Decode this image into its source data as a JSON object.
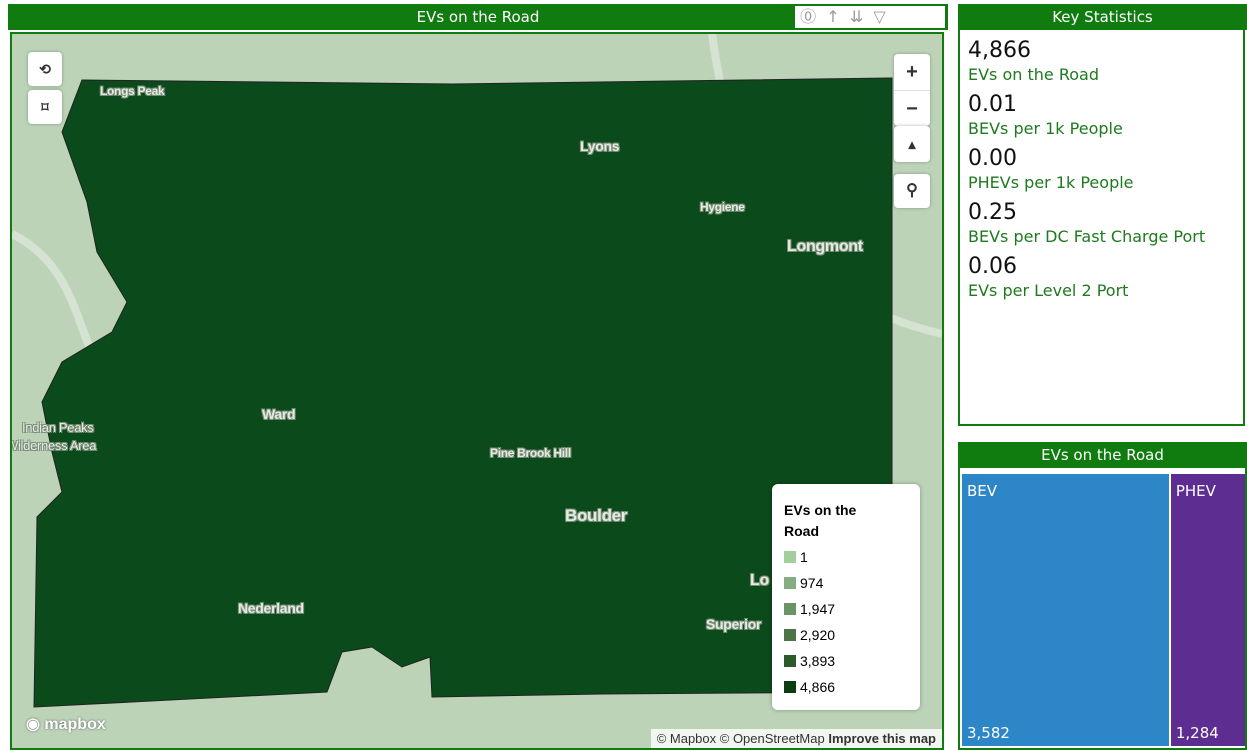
{
  "map_panel": {
    "title": "EVs on the Road",
    "places": [
      "Longs Peak",
      "Lyons",
      "Hygiene",
      "Longmont",
      "Ward",
      "Indian Peaks",
      "Wilderness Area",
      "Pine Brook Hill",
      "Boulder",
      "Nederland",
      "Lo",
      "Superior"
    ],
    "legend": {
      "title": "EVs on the Road",
      "items": [
        {
          "label": "1",
          "color": "#a3cf9e"
        },
        {
          "label": "974",
          "color": "#86ad82"
        },
        {
          "label": "1,947",
          "color": "#6a9366"
        },
        {
          "label": "2,920",
          "color": "#4b7548"
        },
        {
          "label": "3,893",
          "color": "#2d5a2c"
        },
        {
          "label": "4,866",
          "color": "#0b3d12"
        }
      ]
    },
    "logo": "mapbox",
    "attribution": "© Mapbox © OpenStreetMap",
    "improve": "Improve this map"
  },
  "key_statistics": {
    "title": "Key Statistics",
    "items": [
      {
        "value": "4,866",
        "label": "EVs on the Road"
      },
      {
        "value": "0.01",
        "label": "BEVs per 1k People"
      },
      {
        "value": "0.00",
        "label": "PHEVs per 1k People"
      },
      {
        "value": "0.25",
        "label": "BEVs per DC Fast Charge Port"
      },
      {
        "value": "0.06",
        "label": "EVs per Level 2 Port"
      }
    ]
  },
  "treemap": {
    "title": "EVs on the Road",
    "categories": [
      "BEV",
      "PHEV"
    ],
    "values": [
      3582,
      1284
    ],
    "value_labels": [
      "3,582",
      "1,284"
    ],
    "colors": [
      "#2d86c8",
      "#5e2d91"
    ]
  }
}
